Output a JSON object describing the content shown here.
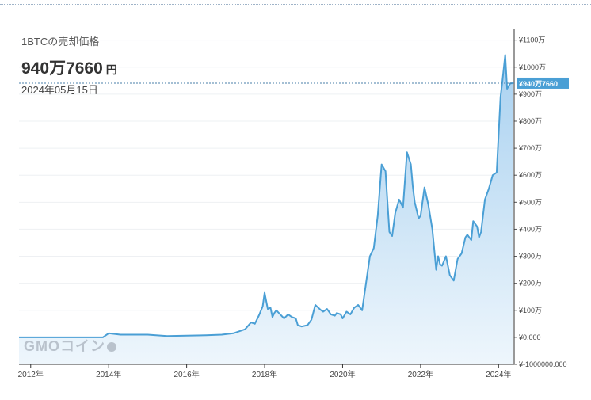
{
  "header": {
    "title": "1BTCの売却価格",
    "price_value": "940万7660",
    "price_unit": "円",
    "date": "2024年05月15日",
    "current_label": "¥940万7660"
  },
  "logo": {
    "text": "GMOコイン"
  },
  "colors": {
    "line": "#4a9fd5",
    "area_top": "#a9d1f0",
    "area_bottom": "#eef6fc",
    "badge": "#4a9fd5"
  },
  "chart_data": {
    "type": "area",
    "ylim": [
      -1000000,
      11400000
    ],
    "y_ticks": [
      {
        "value": 11000000,
        "label": "¥1100万"
      },
      {
        "value": 10000000,
        "label": "¥1000万"
      },
      {
        "value": 9000000,
        "label": "¥900万"
      },
      {
        "value": 8000000,
        "label": "¥800万"
      },
      {
        "value": 7000000,
        "label": "¥700万"
      },
      {
        "value": 6000000,
        "label": "¥600万"
      },
      {
        "value": 5000000,
        "label": "¥500万"
      },
      {
        "value": 4000000,
        "label": "¥400万"
      },
      {
        "value": 3000000,
        "label": "¥300万"
      },
      {
        "value": 2000000,
        "label": "¥200万"
      },
      {
        "value": 1000000,
        "label": "¥100万"
      },
      {
        "value": 0,
        "label": "¥0.000"
      },
      {
        "value": -1000000,
        "label": "¥-1000000.000"
      }
    ],
    "xlim": [
      2011.7,
      2024.4
    ],
    "x_ticks": [
      {
        "value": 2012,
        "label": "2012年"
      },
      {
        "value": 2014,
        "label": "2014年"
      },
      {
        "value": 2016,
        "label": "2016年"
      },
      {
        "value": 2018,
        "label": "2018年"
      },
      {
        "value": 2020,
        "label": "2020年"
      },
      {
        "value": 2022,
        "label": "2022年"
      },
      {
        "value": 2024,
        "label": "2024年"
      }
    ],
    "current_value": 9407660,
    "series": [
      {
        "x": [
          2011.7,
          2012.5,
          2013.5,
          2013.85,
          2014.0,
          2014.3,
          2015.0,
          2015.5,
          2016.0,
          2016.5,
          2016.9,
          2017.2,
          2017.5,
          2017.65,
          2017.75,
          2017.85,
          2017.95,
          2018.0,
          2018.08,
          2018.15,
          2018.2,
          2018.25,
          2018.3,
          2018.4,
          2018.5,
          2018.6,
          2018.7,
          2018.8,
          2018.85,
          2018.95,
          2019.1,
          2019.2,
          2019.3,
          2019.45,
          2019.5,
          2019.6,
          2019.7,
          2019.8,
          2019.85,
          2019.95,
          2020.0,
          2020.1,
          2020.2,
          2020.3,
          2020.4,
          2020.5,
          2020.6,
          2020.7,
          2020.8,
          2020.9,
          2021.0,
          2021.1,
          2021.2,
          2021.27,
          2021.35,
          2021.45,
          2021.55,
          2021.65,
          2021.75,
          2021.8,
          2021.85,
          2021.95,
          2022.0,
          2022.1,
          2022.2,
          2022.3,
          2022.4,
          2022.45,
          2022.5,
          2022.55,
          2022.65,
          2022.75,
          2022.85,
          2022.95,
          2023.05,
          2023.15,
          2023.2,
          2023.3,
          2023.35,
          2023.45,
          2023.5,
          2023.55,
          2023.65,
          2023.75,
          2023.85,
          2023.95,
          2024.05,
          2024.1,
          2024.17,
          2024.22,
          2024.3,
          2024.37
        ],
        "y": [
          0,
          0,
          0,
          0,
          150000,
          100000,
          100000,
          50000,
          60000,
          80000,
          100000,
          150000,
          300000,
          550000,
          500000,
          800000,
          1150000,
          1650000,
          1050000,
          1100000,
          750000,
          900000,
          1000000,
          850000,
          700000,
          850000,
          750000,
          700000,
          450000,
          400000,
          450000,
          650000,
          1200000,
          1000000,
          950000,
          1050000,
          850000,
          800000,
          900000,
          850000,
          700000,
          950000,
          850000,
          1100000,
          1200000,
          1000000,
          2000000,
          3000000,
          3300000,
          4500000,
          6400000,
          6150000,
          3900000,
          3750000,
          4600000,
          5100000,
          4800000,
          6850000,
          6400000,
          5600000,
          5000000,
          4400000,
          4500000,
          5550000,
          4900000,
          4000000,
          2500000,
          3000000,
          2700000,
          2650000,
          3000000,
          2300000,
          2100000,
          2900000,
          3100000,
          3700000,
          3800000,
          3600000,
          4300000,
          4100000,
          3700000,
          3900000,
          5100000,
          5500000,
          6000000,
          6100000,
          8900000,
          9500000,
          10450000,
          9200000,
          9400000,
          9407660
        ]
      }
    ]
  }
}
